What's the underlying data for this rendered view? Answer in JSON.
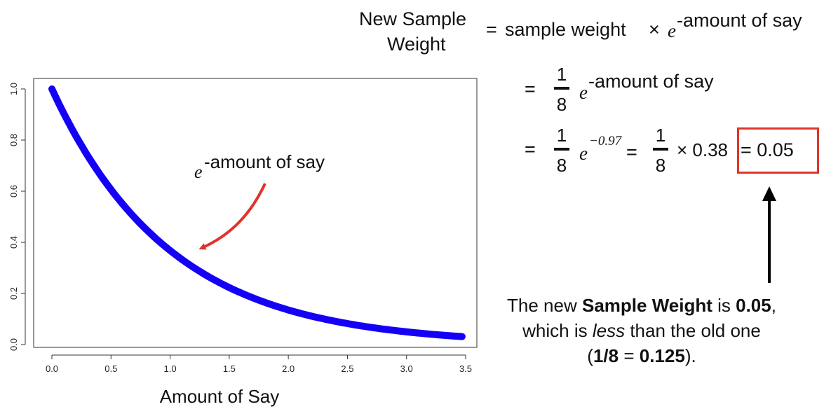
{
  "chart_data": {
    "type": "line",
    "function": "y = e^(-x)",
    "x_range": [
      0,
      3.47
    ],
    "xlim": [
      0,
      3.5
    ],
    "ylim": [
      0,
      1.0
    ],
    "x_ticks": [
      "0.0",
      "0.5",
      "1.0",
      "1.5",
      "2.0",
      "2.5",
      "3.0",
      "3.5"
    ],
    "y_ticks": [
      "0.0",
      "0.2",
      "0.4",
      "0.6",
      "0.8",
      "1.0"
    ],
    "xlabel": "Amount of Say",
    "ylabel": "",
    "series": [
      {
        "color": "#1400f5",
        "x": [
          0,
          0.25,
          0.5,
          0.75,
          1.0,
          1.25,
          1.5,
          1.75,
          2.0,
          2.25,
          2.5,
          2.75,
          3.0,
          3.25,
          3.47
        ],
        "values": [
          1.0,
          0.779,
          0.607,
          0.472,
          0.368,
          0.287,
          0.223,
          0.174,
          0.135,
          0.105,
          0.082,
          0.064,
          0.05,
          0.039,
          0.031
        ]
      }
    ],
    "annotation": {
      "base": "e",
      "exponent": "-amount of say",
      "arrow_color": "#e0342b"
    },
    "grid": false
  },
  "equations": {
    "lhs_line1": "New Sample",
    "lhs_line2": "Weight",
    "eq1": {
      "equals": "=",
      "text": "sample weight",
      "times": "×",
      "base": "e",
      "exponent": "-amount of say"
    },
    "eq2": {
      "equals": "=",
      "numerator": "1",
      "denominator": "8",
      "base": "e",
      "exponent": "-amount of say"
    },
    "eq3": {
      "equals": "=",
      "numerator": "1",
      "denominator": "8",
      "base": "e",
      "exponent": "−0.97",
      "equals2": "=",
      "numerator2": "1",
      "denominator2": "8",
      "times_value": "× 0.38",
      "result": "= 0.05"
    }
  },
  "conclusion": {
    "part1": "The new ",
    "bold1": "Sample Weight",
    "part2": " is ",
    "bold2": "0.05",
    "part3": ",",
    "line2_a": "which is ",
    "line2_italic": "less",
    "line2_b": " than the old one",
    "line3_open": "(",
    "line3_bold1": "1/8",
    "line3_eq": " = ",
    "line3_bold2": "0.125",
    "line3_close": ")."
  },
  "colors": {
    "curve": "#1400f5",
    "annotation_arrow": "#e0342b",
    "highlight_box": "#e0342b",
    "pointer_arrow": "#000000"
  }
}
